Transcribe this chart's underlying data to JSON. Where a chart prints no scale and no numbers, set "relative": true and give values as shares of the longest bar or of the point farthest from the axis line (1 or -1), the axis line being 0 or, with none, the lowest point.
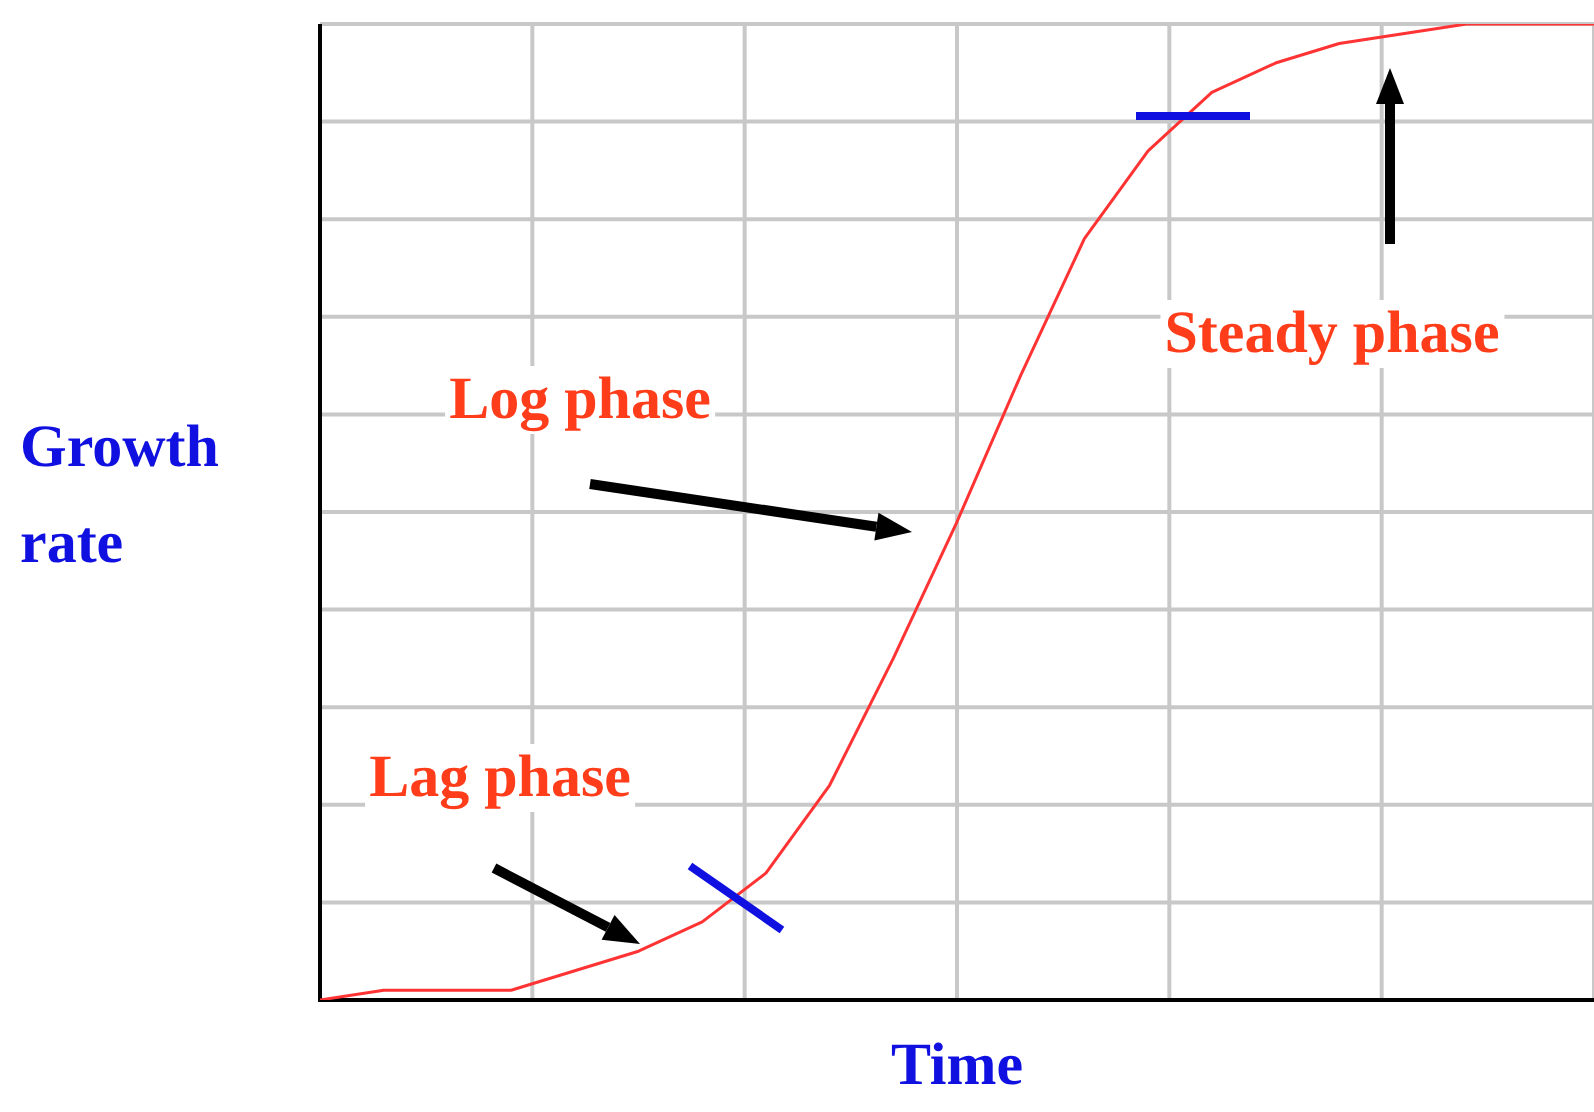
{
  "chart_data": {
    "type": "line",
    "xlabel": "Time",
    "ylabel": "Growth rate",
    "relative": true,
    "grid": true,
    "marker": "none",
    "legend": false,
    "categories": [
      null,
      null,
      null,
      null,
      null,
      null,
      null,
      null,
      null,
      null,
      null,
      null,
      null,
      null,
      null,
      null,
      null,
      null,
      null,
      null,
      null
    ],
    "series": [
      {
        "color": "#ff3333",
        "values": [
          0.0,
          0.01,
          0.01,
          0.01,
          0.03,
          0.05,
          0.08,
          0.13,
          0.22,
          0.35,
          0.49,
          0.64,
          0.78,
          0.87,
          0.93,
          0.96,
          0.98,
          0.99,
          1,
          1,
          1
        ]
      }
    ],
    "annotations": [
      "Log phase",
      "Lag phase",
      "Steady phase"
    ]
  }
}
